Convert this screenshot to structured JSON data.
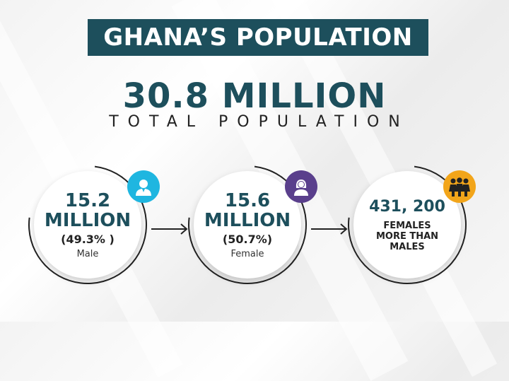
{
  "header": {
    "title": "GHANA’S POPULATION"
  },
  "total": {
    "value": "30.8 MILLION",
    "label": "TOTAL POPULATION"
  },
  "male": {
    "value_line1": "15.2",
    "value_line2": "MILLION",
    "percent": "(49.3% )",
    "label": "Male",
    "icon": "male-user-icon",
    "badge_color": "#1fb6e0"
  },
  "female": {
    "value_line1": "15.6",
    "value_line2": "MILLION",
    "percent": "(50.7%)",
    "label": "Female",
    "icon": "female-user-icon",
    "badge_color": "#5a3f8c"
  },
  "difference": {
    "value": "431, 200",
    "line1": "FEMALES",
    "line2": "MORE THAN",
    "line3": "MALES",
    "icon": "group-of-women-icon",
    "badge_color": "#f2a51a"
  },
  "colors": {
    "primary": "#1d4f5c",
    "background": "#f3f3f3"
  }
}
